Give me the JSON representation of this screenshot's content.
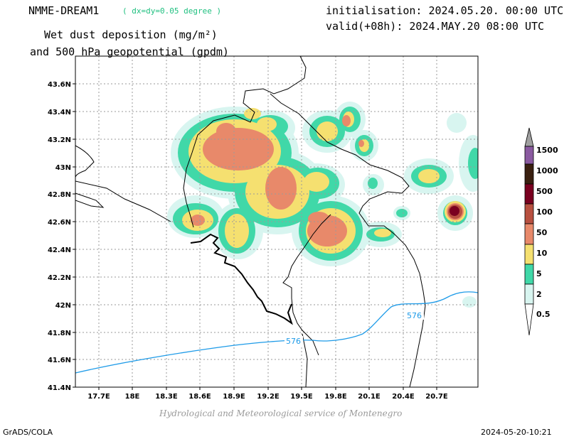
{
  "header": {
    "model": "NMME-DREAM1",
    "resolution": "( dx=dy=0.05 degree )",
    "title_line1": "Wet dust deposition (mg/m²)",
    "title_line2": "and 500 hPa geopotential (gpdm)",
    "initialisation": "initialisation: 2024.05.20. 00:00 UTC",
    "valid": "valid(+08h): 2024.MAY.20 08:00 UTC"
  },
  "map": {
    "lat_labels": [
      "43.6N",
      "43.4N",
      "43.2N",
      "43N",
      "42.8N",
      "42.6N",
      "42.4N",
      "42.2N",
      "42N",
      "41.8N",
      "41.6N",
      "41.4N"
    ],
    "lon_labels": [
      "17.7E",
      "18E",
      "18.3E",
      "18.6E",
      "18.9E",
      "19.2E",
      "19.5E",
      "19.8E",
      "20.1E",
      "20.4E",
      "20.7E"
    ],
    "contour_labels": [
      "576",
      "576"
    ],
    "colors": {
      "gridline": "#9a9a9a",
      "border": "#000000",
      "contour": "#1e9be8",
      "credit": "#9a9a9a",
      "resolution_text": "#20c080"
    }
  },
  "legend": {
    "levels": [
      "1500",
      "1000",
      "500",
      "100",
      "50",
      "10",
      "5",
      "2",
      "0.5"
    ],
    "colors": [
      "#a0a0a0",
      "#8a5aa0",
      "#3a2010",
      "#7a0020",
      "#b85040",
      "#e8896a",
      "#f5e070",
      "#40d8a8",
      "#d8f5f0",
      "#ffffff"
    ]
  },
  "footer": {
    "credit": "Hydrological and Meteorological service of Montenegro",
    "software": "GrADS/COLA",
    "timestamp": "2024-05-20-10:21"
  }
}
